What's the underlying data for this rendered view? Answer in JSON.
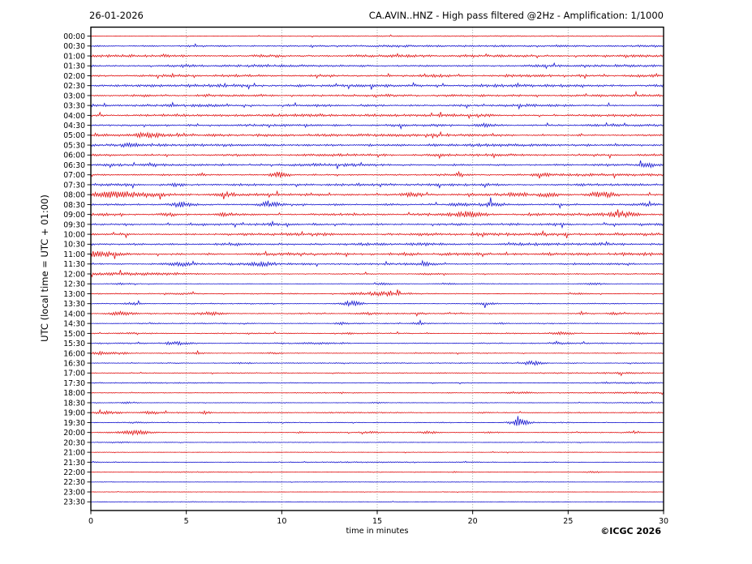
{
  "header": {
    "date": "26-01-2026",
    "title": "CA.AVIN..HNZ - High pass filtered @2Hz - Amplification: 1/1000"
  },
  "footer": {
    "copyright": "©ICGC 2026"
  },
  "chart_data": {
    "type": "line",
    "subtype": "helicorder-seismogram",
    "station": "CA.AVIN..HNZ",
    "filter": "High pass filtered @2Hz",
    "amplification": "1/1000",
    "date": "26-01-2026",
    "xlabel": "time in minutes",
    "ylabel": "UTC (local time = UTC + 01:00)",
    "xlim": [
      0,
      30
    ],
    "x_ticks": [
      0,
      5,
      10,
      15,
      20,
      25,
      30
    ],
    "grid": {
      "vertical_dotted_at": [
        5,
        10,
        15,
        20,
        25
      ]
    },
    "legend": "none",
    "colors": {
      "red": "#e01010",
      "blue": "#1414cf",
      "grid": "#888888"
    },
    "rows_note": "one trace per 30 min; noise = background amplitude (px half-range); events = bursts {t: minutes, a: amplitude px, w: gaussian half-width minutes}",
    "rows": [
      {
        "time": "00:00",
        "color": "red",
        "noise": 0.25,
        "events": [
          {
            "t": 21,
            "a": 0.45,
            "w": 9
          }
        ]
      },
      {
        "time": "00:30",
        "color": "blue",
        "noise": 1.1,
        "events": [
          {
            "t": 22,
            "a": 0.5,
            "w": 9
          }
        ]
      },
      {
        "time": "01:00",
        "color": "red",
        "noise": 2.0,
        "events": []
      },
      {
        "time": "01:30",
        "color": "blue",
        "noise": 2.0,
        "events": []
      },
      {
        "time": "02:00",
        "color": "red",
        "noise": 2.0,
        "events": []
      },
      {
        "time": "02:30",
        "color": "blue",
        "noise": 1.95,
        "events": []
      },
      {
        "time": "03:00",
        "color": "red",
        "noise": 1.9,
        "events": []
      },
      {
        "time": "03:30",
        "color": "blue",
        "noise": 1.9,
        "events": []
      },
      {
        "time": "04:00",
        "color": "red",
        "noise": 1.9,
        "events": [
          {
            "t": 20.5,
            "a": 0.9,
            "w": 0.3
          }
        ]
      },
      {
        "time": "04:30",
        "color": "blue",
        "noise": 1.8,
        "events": [
          {
            "t": 20.7,
            "a": 2.4,
            "w": 0.3
          }
        ]
      },
      {
        "time": "05:00",
        "color": "red",
        "noise": 1.8,
        "events": [
          {
            "t": 3.0,
            "a": 2.4,
            "w": 0.45
          }
        ]
      },
      {
        "time": "05:30",
        "color": "blue",
        "noise": 1.8,
        "events": [
          {
            "t": 2.0,
            "a": 2.4,
            "w": 0.3
          }
        ]
      },
      {
        "time": "06:00",
        "color": "red",
        "noise": 1.8,
        "events": []
      },
      {
        "time": "06:30",
        "color": "blue",
        "noise": 1.75,
        "events": [
          {
            "t": 29.2,
            "a": 4.0,
            "w": 0.3
          },
          {
            "t": 3.2,
            "a": 1.0,
            "w": 0.3
          }
        ]
      },
      {
        "time": "07:00",
        "color": "red",
        "noise": 1.8,
        "events": [
          {
            "t": 9.9,
            "a": 3.2,
            "w": 0.3
          },
          {
            "t": 23.7,
            "a": 1.4,
            "w": 0.3
          }
        ]
      },
      {
        "time": "07:30",
        "color": "blue",
        "noise": 1.7,
        "events": [
          {
            "t": 2.0,
            "a": 1.1,
            "w": 0.3
          },
          {
            "t": 4.4,
            "a": 1.1,
            "w": 0.25
          },
          {
            "t": 21.3,
            "a": 0.9,
            "w": 0.3
          }
        ]
      },
      {
        "time": "08:00",
        "color": "red",
        "noise": 2.1,
        "events": [
          {
            "t": 0.9,
            "a": 2.4,
            "w": 0.9
          },
          {
            "t": 2.3,
            "a": 2.2,
            "w": 0.7
          },
          {
            "t": 7.1,
            "a": 2.3,
            "w": 0.4
          },
          {
            "t": 16.8,
            "a": 1.8,
            "w": 0.5
          },
          {
            "t": 22.4,
            "a": 2.0,
            "w": 0.4
          },
          {
            "t": 24.0,
            "a": 2.3,
            "w": 0.4
          },
          {
            "t": 26.7,
            "a": 2.6,
            "w": 0.5
          }
        ]
      },
      {
        "time": "08:30",
        "color": "blue",
        "noise": 1.8,
        "events": [
          {
            "t": 4.7,
            "a": 2.8,
            "w": 0.4
          },
          {
            "t": 9.4,
            "a": 1.8,
            "w": 0.4
          },
          {
            "t": 19.2,
            "a": 1.8,
            "w": 0.3
          },
          {
            "t": 21.0,
            "a": 1.8,
            "w": 0.3
          },
          {
            "t": 29.0,
            "a": 1.6,
            "w": 0.35
          }
        ]
      },
      {
        "time": "09:00",
        "color": "red",
        "noise": 1.95,
        "events": [
          {
            "t": 4.1,
            "a": 1.8,
            "w": 0.4
          },
          {
            "t": 7.0,
            "a": 1.4,
            "w": 0.3
          },
          {
            "t": 19.7,
            "a": 2.6,
            "w": 0.5
          },
          {
            "t": 27.8,
            "a": 3.2,
            "w": 0.6
          }
        ]
      },
      {
        "time": "09:30",
        "color": "blue",
        "noise": 2.15,
        "events": []
      },
      {
        "time": "10:00",
        "color": "red",
        "noise": 2.0,
        "events": []
      },
      {
        "time": "10:30",
        "color": "blue",
        "noise": 2.0,
        "events": []
      },
      {
        "time": "11:00",
        "color": "red",
        "noise": 2.1,
        "events": [
          {
            "t": 0.6,
            "a": 2.8,
            "w": 0.8
          }
        ]
      },
      {
        "time": "11:30",
        "color": "blue",
        "noise": 1.6,
        "events": [
          {
            "t": 4.6,
            "a": 2.3,
            "w": 0.4
          },
          {
            "t": 9.0,
            "a": 2.0,
            "w": 0.5
          },
          {
            "t": 17.5,
            "a": 1.3,
            "w": 0.25
          }
        ]
      },
      {
        "time": "12:00",
        "color": "red",
        "noise": 0.9,
        "events": [
          {
            "t": 2.2,
            "a": 1.5,
            "w": 2.2
          },
          {
            "t": 17.8,
            "a": 0.9,
            "w": 0.45
          }
        ]
      },
      {
        "time": "12:30",
        "color": "blue",
        "noise": 0.6,
        "events": [
          {
            "t": 1.5,
            "a": 0.8,
            "w": 0.5
          },
          {
            "t": 15.3,
            "a": 1.4,
            "w": 0.3
          },
          {
            "t": 18.7,
            "a": 0.8,
            "w": 0.3
          },
          {
            "t": 26.4,
            "a": 1.1,
            "w": 0.4
          }
        ]
      },
      {
        "time": "13:00",
        "color": "red",
        "noise": 0.7,
        "events": [
          {
            "t": 4.6,
            "a": 0.9,
            "w": 0.5
          },
          {
            "t": 15.0,
            "a": 2.0,
            "w": 1.0
          },
          {
            "t": 25.5,
            "a": 0.7,
            "w": 0.3
          }
        ]
      },
      {
        "time": "13:30",
        "color": "blue",
        "noise": 0.7,
        "events": [
          {
            "t": 2.2,
            "a": 1.3,
            "w": 0.4
          },
          {
            "t": 13.7,
            "a": 2.8,
            "w": 0.4
          },
          {
            "t": 20.8,
            "a": 1.6,
            "w": 0.4
          }
        ]
      },
      {
        "time": "14:00",
        "color": "red",
        "noise": 0.85,
        "events": [
          {
            "t": 1.6,
            "a": 2.1,
            "w": 0.5
          },
          {
            "t": 6.3,
            "a": 2.1,
            "w": 0.5
          },
          {
            "t": 14.5,
            "a": 1.3,
            "w": 0.4
          },
          {
            "t": 17.3,
            "a": 1.1,
            "w": 0.3
          },
          {
            "t": 25.8,
            "a": 1.1,
            "w": 0.3
          },
          {
            "t": 27.5,
            "a": 1.1,
            "w": 0.3
          }
        ]
      },
      {
        "time": "14:30",
        "color": "blue",
        "noise": 0.8,
        "events": [
          {
            "t": 13.1,
            "a": 1.3,
            "w": 0.25
          },
          {
            "t": 17.2,
            "a": 1.1,
            "w": 0.25
          },
          {
            "t": 21.5,
            "a": 0.9,
            "w": 0.25
          }
        ]
      },
      {
        "time": "15:00",
        "color": "red",
        "noise": 0.8,
        "events": [
          {
            "t": 2.0,
            "a": 0.9,
            "w": 0.3
          },
          {
            "t": 13.5,
            "a": 1.1,
            "w": 0.3
          },
          {
            "t": 24.7,
            "a": 1.4,
            "w": 0.4
          },
          {
            "t": 28.6,
            "a": 0.9,
            "w": 0.3
          }
        ]
      },
      {
        "time": "15:30",
        "color": "blue",
        "noise": 0.95,
        "events": [
          {
            "t": 4.5,
            "a": 1.7,
            "w": 0.5
          },
          {
            "t": 11.8,
            "a": 1.1,
            "w": 0.4
          },
          {
            "t": 24.5,
            "a": 0.9,
            "w": 0.3
          }
        ]
      },
      {
        "time": "16:00",
        "color": "red",
        "noise": 0.9,
        "events": [
          {
            "t": 0.5,
            "a": 1.4,
            "w": 0.3
          },
          {
            "t": 1.5,
            "a": 1.2,
            "w": 0.3
          },
          {
            "t": 5.5,
            "a": 1.1,
            "w": 0.3
          },
          {
            "t": 9.5,
            "a": 0.8,
            "w": 0.3
          }
        ]
      },
      {
        "time": "16:30",
        "color": "blue",
        "noise": 0.7,
        "events": [
          {
            "t": 8.0,
            "a": 0.9,
            "w": 0.4
          },
          {
            "t": 23.2,
            "a": 2.8,
            "w": 0.35
          }
        ]
      },
      {
        "time": "17:00",
        "color": "red",
        "noise": 0.65,
        "events": [
          {
            "t": 27.5,
            "a": 0.5,
            "w": 1.5
          }
        ]
      },
      {
        "time": "17:30",
        "color": "blue",
        "noise": 0.65,
        "events": [
          {
            "t": 2.5,
            "a": 0.35,
            "w": 2.0
          },
          {
            "t": 28.0,
            "a": 0.4,
            "w": 1.5
          }
        ]
      },
      {
        "time": "18:00",
        "color": "red",
        "noise": 0.7,
        "events": [
          {
            "t": 22.2,
            "a": 1.1,
            "w": 0.3
          },
          {
            "t": 22.9,
            "a": 0.9,
            "w": 0.2
          },
          {
            "t": 27.5,
            "a": 0.45,
            "w": 2.0
          }
        ]
      },
      {
        "time": "18:30",
        "color": "blue",
        "noise": 0.65,
        "events": [
          {
            "t": 2.0,
            "a": 0.9,
            "w": 0.3
          },
          {
            "t": 15.0,
            "a": 0.7,
            "w": 0.3
          },
          {
            "t": 28.5,
            "a": 0.45,
            "w": 1.5
          }
        ]
      },
      {
        "time": "19:00",
        "color": "red",
        "noise": 0.85,
        "events": [
          {
            "t": 0.8,
            "a": 1.4,
            "w": 0.5
          },
          {
            "t": 3.2,
            "a": 1.6,
            "w": 0.3
          },
          {
            "t": 6.0,
            "a": 2.0,
            "w": 0.18
          },
          {
            "t": 20.5,
            "a": 0.8,
            "w": 0.3
          }
        ]
      },
      {
        "time": "19:30",
        "color": "blue",
        "noise": 0.7,
        "events": [
          {
            "t": 2.5,
            "a": 0.7,
            "w": 0.5
          },
          {
            "t": 22.5,
            "a": 4.2,
            "w": 0.38
          }
        ]
      },
      {
        "time": "20:00",
        "color": "red",
        "noise": 0.7,
        "events": [
          {
            "t": 2.2,
            "a": 3.0,
            "w": 0.65
          },
          {
            "t": 11.0,
            "a": 0.9,
            "w": 0.3
          },
          {
            "t": 14.7,
            "a": 1.1,
            "w": 0.4
          },
          {
            "t": 17.7,
            "a": 1.2,
            "w": 0.4
          },
          {
            "t": 21.0,
            "a": 0.9,
            "w": 0.3
          },
          {
            "t": 28.4,
            "a": 0.9,
            "w": 0.3
          }
        ]
      },
      {
        "time": "20:30",
        "color": "blue",
        "noise": 0.5,
        "events": [
          {
            "t": 1.5,
            "a": 0.6,
            "w": 0.5
          }
        ]
      },
      {
        "time": "21:00",
        "color": "red",
        "noise": 0.4,
        "events": []
      },
      {
        "time": "21:30",
        "color": "blue",
        "noise": 0.45,
        "events": [
          {
            "t": 1.0,
            "a": 0.3,
            "w": 1.0
          },
          {
            "t": 13.6,
            "a": 0.4,
            "w": 1.8
          },
          {
            "t": 20.0,
            "a": 0.3,
            "w": 1.0
          }
        ]
      },
      {
        "time": "22:00",
        "color": "red",
        "noise": 0.4,
        "events": [
          {
            "t": 6.0,
            "a": 0.35,
            "w": 2.0
          },
          {
            "t": 19.0,
            "a": 0.7,
            "w": 0.2
          },
          {
            "t": 26.3,
            "a": 1.3,
            "w": 0.25
          }
        ]
      },
      {
        "time": "22:30",
        "color": "blue",
        "noise": 0.35,
        "events": []
      },
      {
        "time": "23:00",
        "color": "red",
        "noise": 0.3,
        "events": []
      },
      {
        "time": "23:30",
        "color": "blue",
        "noise": 0.35,
        "events": []
      }
    ]
  }
}
